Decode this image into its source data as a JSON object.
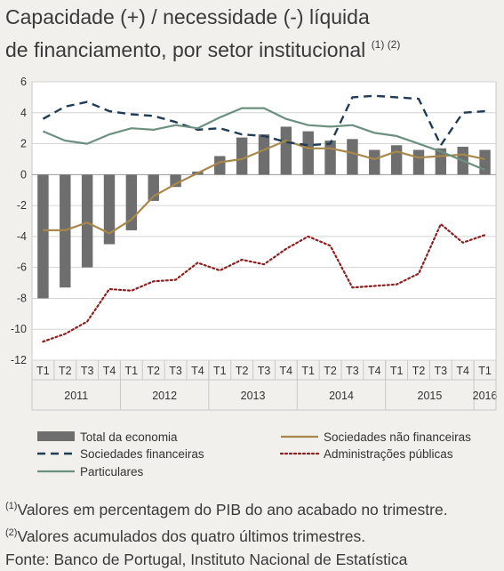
{
  "title": {
    "line1": "Capacidade (+) / necessidade (-) líquida",
    "line2": "de financiamento, por setor institucional",
    "footnote_marks": "(1) (2)"
  },
  "notes": [
    {
      "mark": "(1)",
      "text": "Valores em percentagem do PIB do ano acabado no trimestre."
    },
    {
      "mark": "(2)",
      "text": "Valores acumulados dos quatro últimos trimestres."
    }
  ],
  "source": "Fonte: Banco de Portugal, Instituto Nacional de Estatística",
  "chart_data": {
    "type": "bar",
    "categories": [
      "T1",
      "T2",
      "T3",
      "T4",
      "T1",
      "T2",
      "T3",
      "T4",
      "T1",
      "T2",
      "T3",
      "T4",
      "T1",
      "T2",
      "T3",
      "T4",
      "T1",
      "T2",
      "T3",
      "T4",
      "T1"
    ],
    "years": [
      {
        "label": "2011",
        "quarters": 4
      },
      {
        "label": "2012",
        "quarters": 4
      },
      {
        "label": "2013",
        "quarters": 4
      },
      {
        "label": "2014",
        "quarters": 4
      },
      {
        "label": "2015",
        "quarters": 4
      },
      {
        "label": "2016",
        "quarters": 1
      }
    ],
    "ylim": [
      -12,
      6
    ],
    "yticks": [
      6,
      4,
      2,
      0,
      -2,
      -4,
      -6,
      -8,
      -10,
      -12
    ],
    "grid": true,
    "legend_placement": "bottom",
    "series": [
      {
        "name": "Total da economia",
        "kind": "bar",
        "color": "#6e6e6e",
        "values": [
          -8.0,
          -7.3,
          -6.0,
          -4.5,
          -3.6,
          -1.7,
          -0.8,
          0.2,
          1.2,
          2.4,
          2.6,
          3.1,
          2.8,
          2.2,
          2.3,
          1.6,
          1.9,
          1.6,
          1.7,
          1.8,
          1.6
        ]
      },
      {
        "name": "Sociedades não financeiras",
        "kind": "line",
        "style": "solid",
        "color": "#a8884a",
        "values": [
          -3.6,
          -3.6,
          -3.1,
          -3.8,
          -2.9,
          -1.4,
          -0.6,
          0.1,
          0.8,
          1.0,
          1.6,
          2.2,
          1.7,
          1.7,
          1.4,
          1.0,
          1.5,
          1.1,
          1.2,
          1.3,
          1.0
        ]
      },
      {
        "name": "Sociedades financeiras",
        "kind": "line",
        "style": "dashed",
        "color": "#1f3c57",
        "values": [
          3.6,
          4.4,
          4.7,
          4.1,
          3.9,
          3.8,
          3.4,
          2.9,
          3.0,
          2.6,
          2.5,
          2.1,
          1.9,
          2.0,
          5.0,
          5.1,
          5.0,
          4.9,
          1.9,
          4.0,
          4.1
        ]
      },
      {
        "name": "Administrações públicas",
        "kind": "line",
        "style": "dotted",
        "color": "#8c2020",
        "values": [
          -10.8,
          -10.3,
          -9.5,
          -7.4,
          -7.5,
          -6.9,
          -6.8,
          -5.7,
          -6.2,
          -5.5,
          -5.8,
          -4.8,
          -4.0,
          -4.6,
          -7.3,
          -7.2,
          -7.1,
          -6.4,
          -3.2,
          -4.4,
          -3.9
        ]
      },
      {
        "name": "Particulares",
        "kind": "line",
        "style": "solid",
        "color": "#6b9080",
        "values": [
          2.8,
          2.2,
          2.0,
          2.6,
          3.0,
          2.9,
          3.2,
          3.0,
          3.7,
          4.3,
          4.3,
          3.6,
          3.2,
          3.1,
          3.2,
          2.7,
          2.5,
          2.0,
          1.5,
          0.9,
          0.3
        ]
      }
    ]
  }
}
